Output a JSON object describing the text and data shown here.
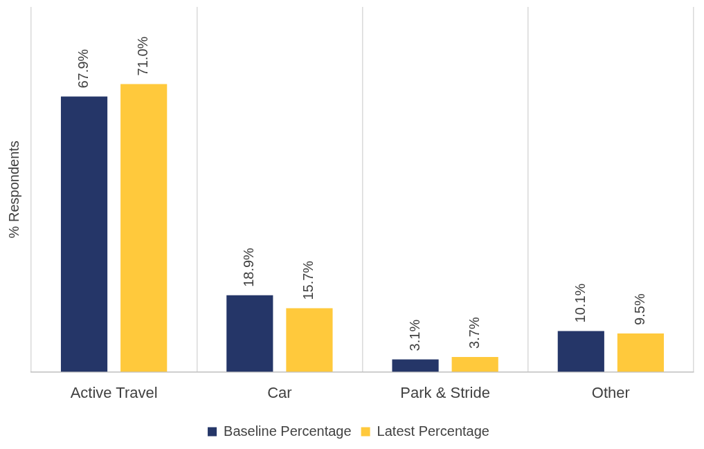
{
  "chart_data": {
    "type": "bar",
    "ylabel": "% Respondents",
    "categories": [
      "Active Travel",
      "Car",
      "Park & Stride",
      "Other"
    ],
    "series": [
      {
        "name": "Baseline Percentage",
        "color": "#253668",
        "values": [
          67.9,
          18.9,
          3.1,
          10.1
        ],
        "value_labels": [
          "67.9%",
          "18.9%",
          "3.1%",
          "10.1%"
        ]
      },
      {
        "name": "Latest Percentage",
        "color": "#ffc93c",
        "values": [
          71.0,
          15.7,
          3.7,
          9.5
        ],
        "value_labels": [
          "71.0%",
          "15.7%",
          "3.7%",
          "9.5%"
        ]
      }
    ],
    "grid": "x",
    "legend": "bottom",
    "tick_labels": "x"
  }
}
